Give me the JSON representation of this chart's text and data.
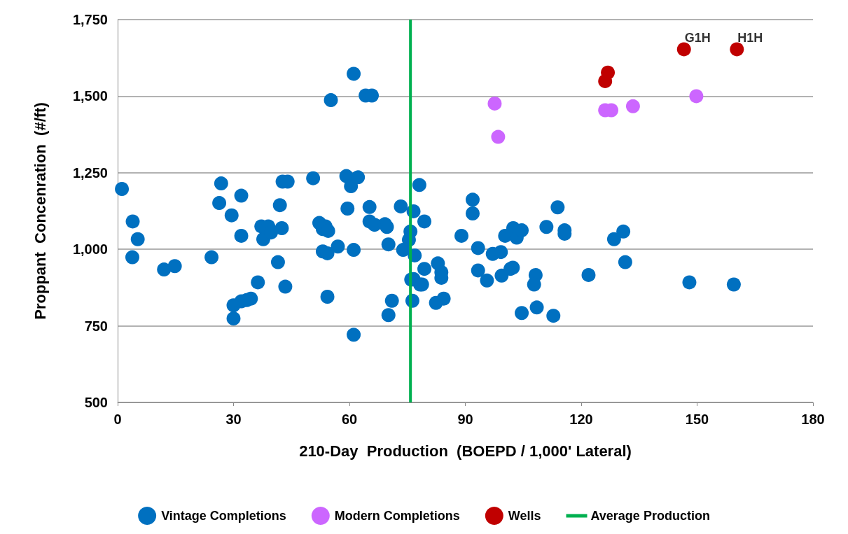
{
  "chart_data": {
    "type": "scatter",
    "xlabel": "210-Day  Production  (BOEPD / 1,000' Lateral)",
    "ylabel": "Proppant  Concenration  (#/ft)",
    "xlim": [
      0,
      180
    ],
    "xticks": [
      0,
      30,
      60,
      90,
      120,
      150,
      180
    ],
    "ylim": [
      500,
      1750
    ],
    "yticks": [
      {
        "value": 500,
        "label": "500"
      },
      {
        "value": 750,
        "label": "750"
      },
      {
        "value": 1000,
        "label": "1,000"
      },
      {
        "value": 1250,
        "label": "1,250"
      },
      {
        "value": 1500,
        "label": "1,500"
      },
      {
        "value": 1750,
        "label": "1,750"
      }
    ],
    "grid": "y",
    "legend": "bottom",
    "marker": "circle",
    "series": [
      {
        "name": "Vintage Completions",
        "color": "#0070c0",
        "x": [
          1.1,
          3.9,
          5.2,
          3.8,
          12,
          14.8,
          24.3,
          26.8,
          26.3,
          29.5,
          32,
          32,
          30,
          30,
          32,
          33.4,
          34.5,
          36.3,
          37.2,
          39,
          37.7,
          39.7,
          42,
          42.5,
          42.7,
          44,
          41.5,
          43.4,
          50.6,
          52.2,
          53.1,
          53.8,
          54.5,
          53.1,
          54.3,
          54.3,
          55.2,
          57,
          59.2,
          59.5,
          60.4,
          62.2,
          61.1,
          61.1,
          61.1,
          64.2,
          65.8,
          65.2,
          65.2,
          66.5,
          69.2,
          69.7,
          70.1,
          70.1,
          71,
          73.3,
          73.9,
          75.4,
          75.8,
          76,
          76.3,
          76.6,
          76.6,
          76.9,
          78.1,
          78.3,
          78.8,
          79.4,
          79.4,
          82.4,
          82.9,
          83.8,
          83.8,
          84.4,
          89,
          91.9,
          91.9,
          93.3,
          93.3,
          95.6,
          97.1,
          99.2,
          99.4,
          100.3,
          101.7,
          102.3,
          102.4,
          103.3,
          104.6,
          104.6,
          108.2,
          107.8,
          108.5,
          111,
          112.8,
          113.9,
          115.7,
          115.7,
          121.9,
          128.5,
          130.9,
          131.4,
          148,
          159.5
        ],
        "values": [
          1197,
          1091,
          1033,
          974,
          934,
          945,
          974,
          1215,
          1151,
          1111,
          1175,
          1044,
          817,
          774,
          830,
          834,
          839,
          892,
          1075,
          1075,
          1033,
          1055,
          1144,
          1069,
          1221,
          1221,
          958,
          878,
          1232,
          1086,
          1066,
          1075,
          1060,
          993,
          987,
          845,
          1487,
          1009,
          1239,
          1133,
          1206,
          1235,
          998,
          721,
          1573,
          1502,
          1502,
          1138,
          1091,
          1080,
          1082,
          1073,
          1016,
          785,
          832,
          1140,
          998,
          1031,
          1058,
          901,
          832,
          903,
          1124,
          980,
          1210,
          885,
          885,
          1091,
          936,
          825,
          954,
          925,
          907,
          839,
          1044,
          1162,
          1117,
          1004,
          931,
          898,
          985,
          991,
          914,
          1044,
          936,
          940,
          1069,
          1038,
          1062,
          792,
          916,
          885,
          810,
          1073,
          783,
          1137,
          1062,
          1051,
          916,
          1033,
          1058,
          958,
          892,
          885
        ]
      },
      {
        "name": "Modern Completions",
        "color": "#cc66ff",
        "x": [
          97.6,
          98.5,
          126.2,
          127.8,
          133.4,
          149.8
        ],
        "values": [
          1476,
          1367,
          1454,
          1454,
          1467,
          1500
        ]
      },
      {
        "name": "Wells",
        "color": "#c00000",
        "x": [
          126.2,
          126.9,
          146.6,
          160.3
        ],
        "values": [
          1549,
          1577,
          1653,
          1653
        ]
      }
    ],
    "ref_lines": [
      {
        "axis": "x",
        "value": 75.8,
        "label": "Average Production",
        "color": "#00b050"
      }
    ],
    "annotations": [
      {
        "text": "G1H",
        "x": 146.6,
        "y": 1653
      },
      {
        "text": "H1H",
        "x": 160.3,
        "y": 1653
      }
    ]
  }
}
